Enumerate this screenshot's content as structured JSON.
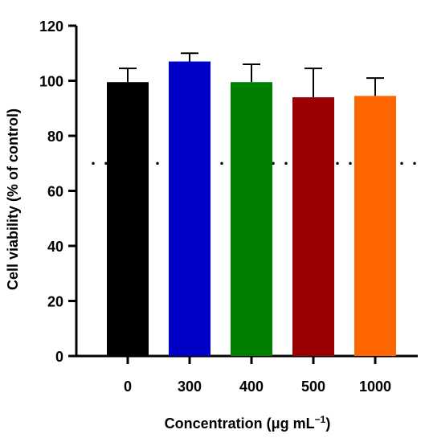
{
  "chart_data": {
    "type": "bar",
    "categories": [
      "0",
      "300",
      "400",
      "500",
      "1000"
    ],
    "series": [
      {
        "values": [
          99.5,
          107,
          99.5,
          94,
          94.5
        ],
        "error": [
          5,
          3,
          6.5,
          10.5,
          6.5
        ],
        "colors": [
          "#000000",
          "#0000c8",
          "#008000",
          "#9a0000",
          "#ff6600"
        ]
      }
    ],
    "xlabel": "Concentration (μg mL",
    "xlabel_superscript": "−1",
    "xlabel_suffix": ")",
    "ylabel": "Cell viability (% of control)",
    "ylim": [
      0,
      120
    ],
    "yticks": [
      "0",
      "20",
      "40",
      "60",
      "80",
      "100",
      "120"
    ],
    "reference_line": {
      "value": 70,
      "style": "dotted"
    },
    "grid": false,
    "legend": "none"
  }
}
